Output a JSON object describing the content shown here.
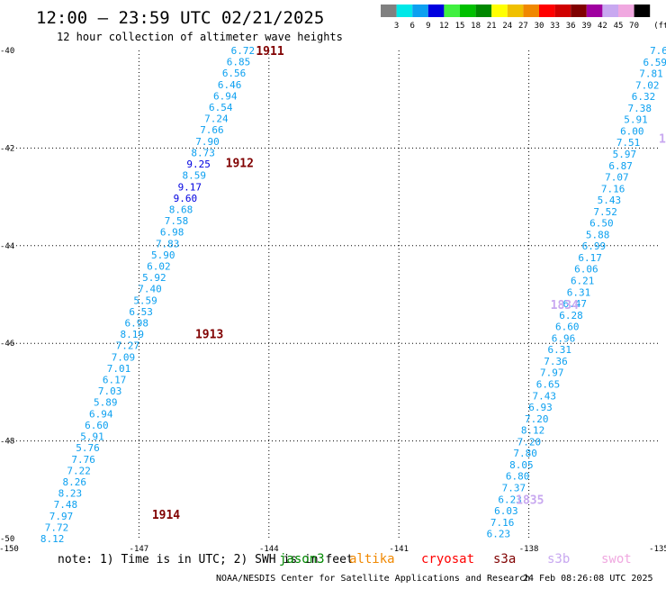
{
  "header": {
    "title": "12:00 – 23:59 UTC 02/21/2025",
    "subtitle": "12 hour collection of altimeter wave heights"
  },
  "legend": {
    "unit": "(ft)",
    "swatches": [
      {
        "color": "#808080",
        "label": "3"
      },
      {
        "color": "#00e8e8",
        "label": "6"
      },
      {
        "color": "#0ca0f0",
        "label": "9"
      },
      {
        "color": "#0000e0",
        "label": "12"
      },
      {
        "color": "#40f040",
        "label": "15"
      },
      {
        "color": "#00c000",
        "label": "18"
      },
      {
        "color": "#008800",
        "label": "21"
      },
      {
        "color": "#ffff00",
        "label": "24"
      },
      {
        "color": "#f0c000",
        "label": "27"
      },
      {
        "color": "#f08800",
        "label": "30"
      },
      {
        "color": "#ff0000",
        "label": "33"
      },
      {
        "color": "#d00000",
        "label": "36"
      },
      {
        "color": "#800000",
        "label": "39"
      },
      {
        "color": "#a000a0",
        "label": "42"
      },
      {
        "color": "#c8a8f0",
        "label": "45"
      },
      {
        "color": "#f0a8e0",
        "label": "70"
      },
      {
        "color": "#000000",
        "label": ""
      }
    ]
  },
  "map": {
    "lon_range": [
      -150,
      -135
    ],
    "lat_range": [
      -50,
      -40
    ],
    "x_ticks": [
      "-150",
      "-147",
      "-144",
      "-141",
      "-138",
      "-135"
    ],
    "y_ticks": [
      "-40",
      "-42",
      "-44",
      "-46",
      "-48",
      "-50"
    ],
    "grid": "dotted"
  },
  "time_labels": [
    {
      "text": "1911",
      "color": "#800000",
      "lon": -144.3,
      "lat": -40.0
    },
    {
      "text": "1912",
      "color": "#800000",
      "lon": -145.0,
      "lat": -42.3
    },
    {
      "text": "1913",
      "color": "#800000",
      "lon": -145.7,
      "lat": -45.8
    },
    {
      "text": "1914",
      "color": "#800000",
      "lon": -146.7,
      "lat": -49.5
    },
    {
      "text": "1834",
      "color": "#c8a8f0",
      "lon": -137.5,
      "lat": -45.2
    },
    {
      "text": "1835",
      "color": "#c8a8f0",
      "lon": -138.3,
      "lat": -49.2
    },
    {
      "text": "1",
      "color": "#c8a8f0",
      "lon": -135.0,
      "lat": -41.8
    }
  ],
  "tracks": [
    {
      "name": "track-1911-1914",
      "color": "#0ca0f0",
      "start": [
        -144.6,
        -40.0
      ],
      "end": [
        -149.0,
        -50.0
      ],
      "values": [
        "6.72",
        "6.85",
        "6.56",
        "6.46",
        "6.94",
        "6.54",
        "7.24",
        "7.66",
        "7.90",
        "8.73",
        "9.25",
        "8.59",
        "9.17",
        "9.60",
        "8.68",
        "7.58",
        "6.98",
        "7.83",
        "5.90",
        "6.02",
        "5.92",
        "7.40",
        "5.59",
        "6.53",
        "6.98",
        "8.19",
        "7.27",
        "7.09",
        "7.01",
        "6.17",
        "7.03",
        "5.89",
        "6.94",
        "6.60",
        "5.91",
        "5.76",
        "7.76",
        "7.22",
        "8.26",
        "8.23",
        "7.48",
        "7.97",
        "7.72",
        "8.12"
      ],
      "dark_values": [
        "9.25",
        "9.17",
        "9.60"
      ]
    },
    {
      "name": "track-1834-1835",
      "color": "#0ca0f0",
      "start": [
        -135.0,
        -40.0
      ],
      "end": [
        -138.7,
        -49.9
      ],
      "values": [
        "7.6",
        "6.59",
        "7.81",
        "7.02",
        "6.32",
        "7.38",
        "5.91",
        "6.00",
        "7.51",
        "5.97",
        "6.87",
        "7.07",
        "7.16",
        "5.43",
        "7.52",
        "6.50",
        "5.88",
        "6.99",
        "6.17",
        "6.06",
        "6.21",
        "6.31",
        "6.47",
        "6.28",
        "6.60",
        "6.96",
        "6.31",
        "7.36",
        "7.97",
        "6.65",
        "7.43",
        "6.93",
        "7.20",
        "8.12",
        "7.20",
        "7.80",
        "8.05",
        "6.80",
        "7.37",
        "6.23",
        "6.03",
        "7.16",
        "6.23"
      ],
      "dark_values": []
    }
  ],
  "satellites": [
    {
      "name": "jason3",
      "color": "#008800"
    },
    {
      "name": "altika",
      "color": "#f08800"
    },
    {
      "name": "cryosat",
      "color": "#ff0000"
    },
    {
      "name": "s3a",
      "color": "#800000"
    },
    {
      "name": "s3b",
      "color": "#c8a8f0"
    },
    {
      "name": "swot",
      "color": "#f0a8e0"
    }
  ],
  "footer": {
    "note": "note:  1) Time is in UTC; 2) SWH is in feet",
    "credit": "NOAA/NESDIS Center for Satellite Applications and Research",
    "timestamp": "24 Feb 08:26:08 UTC 2025"
  }
}
